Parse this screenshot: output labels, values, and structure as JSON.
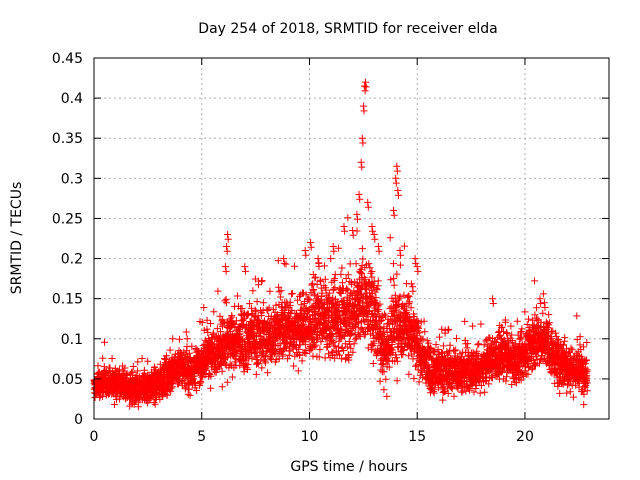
{
  "chart_data": {
    "type": "scatter",
    "title": "Day 254 of 2018, SRMTID for receiver elda",
    "xlabel": "GPS time / hours",
    "ylabel": "SRMTID / TECUs",
    "xlim": [
      0,
      23.9
    ],
    "ylim": [
      0,
      0.45
    ],
    "xticks": [
      0,
      5,
      10,
      15,
      20
    ],
    "xtick_labels": [
      "0",
      "5",
      "10",
      "15",
      "20"
    ],
    "yticks": [
      0,
      0.05,
      0.1,
      0.15,
      0.2,
      0.25,
      0.3,
      0.35,
      0.4,
      0.45
    ],
    "ytick_labels": [
      "0",
      "0.05",
      "0.1",
      "0.15",
      "0.2",
      "0.25",
      "0.3",
      "0.35",
      "0.4",
      "0.45"
    ],
    "grid": true,
    "marker": "+",
    "series": [
      {
        "name": "SRMTID",
        "color": "#ff0000",
        "sample_interval_hours": 0.01,
        "points_per_sample": 2,
        "trend": {
          "hours": [
            0,
            0.5,
            1,
            1.5,
            2,
            2.5,
            3,
            3.5,
            4,
            4.5,
            5,
            5.5,
            6,
            6.5,
            7,
            7.5,
            8,
            8.5,
            9,
            9.5,
            10,
            10.5,
            11,
            11.5,
            12,
            12.5,
            13,
            13.5,
            14,
            14.5,
            15,
            15.5,
            16,
            16.5,
            17,
            17.5,
            18,
            18.5,
            19,
            19.5,
            20,
            20.5,
            21,
            21.5,
            22,
            22.5,
            22.9
          ],
          "values": [
            0.04,
            0.045,
            0.045,
            0.04,
            0.035,
            0.04,
            0.045,
            0.055,
            0.065,
            0.06,
            0.07,
            0.085,
            0.09,
            0.095,
            0.1,
            0.105,
            0.1,
            0.11,
            0.115,
            0.11,
            0.12,
            0.125,
            0.12,
            0.125,
            0.13,
            0.15,
            0.13,
            0.085,
            0.12,
            0.12,
            0.09,
            0.065,
            0.06,
            0.06,
            0.06,
            0.06,
            0.065,
            0.075,
            0.08,
            0.07,
            0.08,
            0.1,
            0.095,
            0.07,
            0.065,
            0.06,
            0.055
          ]
        },
        "spread": {
          "hours": [
            0,
            5,
            6,
            10,
            12,
            14,
            15.5,
            18,
            20,
            21,
            23
          ],
          "values": [
            0.012,
            0.018,
            0.025,
            0.03,
            0.035,
            0.035,
            0.02,
            0.02,
            0.02,
            0.022,
            0.018
          ]
        },
        "spikes": [
          {
            "hour": 6.2,
            "value": 0.23
          },
          {
            "hour": 6.15,
            "value": 0.215
          },
          {
            "hour": 6.1,
            "value": 0.19
          },
          {
            "hour": 7.0,
            "value": 0.19
          },
          {
            "hour": 8.8,
            "value": 0.2
          },
          {
            "hour": 9.8,
            "value": 0.21
          },
          {
            "hour": 10.05,
            "value": 0.22
          },
          {
            "hour": 10.4,
            "value": 0.2
          },
          {
            "hour": 11.1,
            "value": 0.215
          },
          {
            "hour": 11.6,
            "value": 0.24
          },
          {
            "hour": 12.0,
            "value": 0.235
          },
          {
            "hour": 12.2,
            "value": 0.255
          },
          {
            "hour": 12.3,
            "value": 0.28
          },
          {
            "hour": 12.45,
            "value": 0.35
          },
          {
            "hour": 12.5,
            "value": 0.39
          },
          {
            "hour": 12.55,
            "value": 0.415
          },
          {
            "hour": 12.6,
            "value": 0.42
          },
          {
            "hour": 12.4,
            "value": 0.32
          },
          {
            "hour": 12.7,
            "value": 0.27
          },
          {
            "hour": 12.9,
            "value": 0.24
          },
          {
            "hour": 13.0,
            "value": 0.23
          },
          {
            "hour": 13.2,
            "value": 0.215
          },
          {
            "hour": 13.9,
            "value": 0.26
          },
          {
            "hour": 14.0,
            "value": 0.3
          },
          {
            "hour": 14.05,
            "value": 0.315
          },
          {
            "hour": 14.1,
            "value": 0.285
          },
          {
            "hour": 14.2,
            "value": 0.21
          },
          {
            "hour": 14.9,
            "value": 0.2
          },
          {
            "hour": 15.0,
            "value": 0.19
          },
          {
            "hour": 18.5,
            "value": 0.15
          },
          {
            "hour": 20.7,
            "value": 0.15
          },
          {
            "hour": 20.9,
            "value": 0.145
          }
        ]
      }
    ]
  }
}
